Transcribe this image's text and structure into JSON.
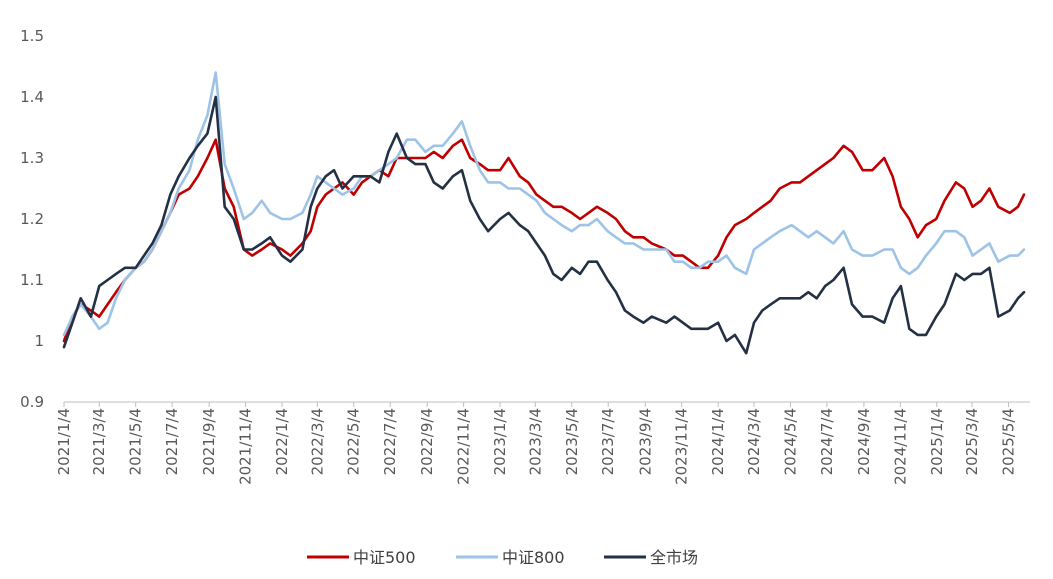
{
  "chart_data": {
    "type": "line",
    "title": "",
    "xlabel": "",
    "ylabel": "",
    "ylim": [
      0.9,
      1.5
    ],
    "yticks": [
      "0.9",
      "1",
      "1.1",
      "1.2",
      "1.3",
      "1.4",
      "1.5"
    ],
    "xticks": [
      "2021/1/4",
      "2021/3/4",
      "2021/5/4",
      "2021/7/4",
      "2021/9/4",
      "2021/11/4",
      "2022/1/4",
      "2022/3/4",
      "2022/5/4",
      "2022/7/4",
      "2022/9/4",
      "2022/11/4",
      "2023/1/4",
      "2023/3/4",
      "2023/5/4",
      "2023/7/4",
      "2023/9/4",
      "2023/11/4",
      "2024/1/4",
      "2024/3/4",
      "2024/5/4",
      "2024/7/4",
      "2024/9/4",
      "2024/11/4",
      "2025/1/4",
      "2025/3/4",
      "2025/5/4"
    ],
    "grid": false,
    "legend_position": "bottom",
    "x": [
      "2021/1/4",
      "2021/1/18",
      "2021/2/1",
      "2021/2/18",
      "2021/3/4",
      "2021/3/18",
      "2021/4/1",
      "2021/4/16",
      "2021/5/4",
      "2021/5/18",
      "2021/6/1",
      "2021/6/16",
      "2021/7/1",
      "2021/7/15",
      "2021/8/2",
      "2021/8/16",
      "2021/9/1",
      "2021/9/15",
      "2021/9/30",
      "2021/10/15",
      "2021/11/1",
      "2021/11/15",
      "2021/12/1",
      "2021/12/15",
      "2022/1/4",
      "2022/1/18",
      "2022/2/7",
      "2022/2/21",
      "2022/3/4",
      "2022/3/18",
      "2022/4/1",
      "2022/4/15",
      "2022/5/4",
      "2022/5/18",
      "2022/6/1",
      "2022/6/16",
      "2022/7/1",
      "2022/7/15",
      "2022/8/1",
      "2022/8/15",
      "2022/9/1",
      "2022/9/15",
      "2022/9/30",
      "2022/10/17",
      "2022/11/1",
      "2022/11/15",
      "2022/12/1",
      "2022/12/15",
      "2023/1/4",
      "2023/1/18",
      "2023/2/6",
      "2023/2/20",
      "2023/3/6",
      "2023/3/20",
      "2023/4/3",
      "2023/4/17",
      "2023/5/4",
      "2023/5/18",
      "2023/6/1",
      "2023/6/15",
      "2023/7/3",
      "2023/7/17",
      "2023/8/1",
      "2023/8/15",
      "2023/9/1",
      "2023/9/15",
      "2023/10/9",
      "2023/10/23",
      "2023/11/6",
      "2023/11/20",
      "2023/12/4",
      "2023/12/18",
      "2024/1/4",
      "2024/1/18",
      "2024/2/1",
      "2024/2/20",
      "2024/3/4",
      "2024/3/18",
      "2024/4/1",
      "2024/4/16",
      "2024/5/6",
      "2024/5/20",
      "2024/6/3",
      "2024/6/17",
      "2024/7/1",
      "2024/7/15",
      "2024/8/1",
      "2024/8/15",
      "2024/9/2",
      "2024/9/18",
      "2024/10/8",
      "2024/10/22",
      "2024/11/5",
      "2024/11/19",
      "2024/12/3",
      "2024/12/17",
      "2025/1/3",
      "2025/1/17",
      "2025/2/5",
      "2025/2/19",
      "2025/3/5",
      "2025/3/19",
      "2025/4/2",
      "2025/4/17",
      "2025/5/6",
      "2025/5/20",
      "2025/5/30"
    ],
    "series": [
      {
        "name": "中证500",
        "color": "#c00000",
        "values": [
          1.0,
          1.04,
          1.06,
          1.05,
          1.04,
          1.06,
          1.08,
          1.1,
          1.12,
          1.13,
          1.15,
          1.18,
          1.21,
          1.24,
          1.25,
          1.27,
          1.3,
          1.33,
          1.25,
          1.22,
          1.15,
          1.14,
          1.15,
          1.16,
          1.15,
          1.14,
          1.16,
          1.18,
          1.22,
          1.24,
          1.25,
          1.26,
          1.24,
          1.26,
          1.27,
          1.28,
          1.27,
          1.3,
          1.3,
          1.3,
          1.3,
          1.31,
          1.3,
          1.32,
          1.33,
          1.3,
          1.29,
          1.28,
          1.28,
          1.3,
          1.27,
          1.26,
          1.24,
          1.23,
          1.22,
          1.22,
          1.21,
          1.2,
          1.21,
          1.22,
          1.21,
          1.2,
          1.18,
          1.17,
          1.17,
          1.16,
          1.15,
          1.14,
          1.14,
          1.13,
          1.12,
          1.12,
          1.14,
          1.17,
          1.19,
          1.2,
          1.21,
          1.22,
          1.23,
          1.25,
          1.26,
          1.26,
          1.27,
          1.28,
          1.29,
          1.3,
          1.32,
          1.31,
          1.28,
          1.28,
          1.3,
          1.27,
          1.22,
          1.2,
          1.17,
          1.19,
          1.2,
          1.23,
          1.26,
          1.25,
          1.22,
          1.23,
          1.25,
          1.22,
          1.21,
          1.22,
          1.24
        ]
      },
      {
        "name": "中证800",
        "color": "#9dc3e6",
        "values": [
          1.01,
          1.04,
          1.06,
          1.04,
          1.02,
          1.03,
          1.07,
          1.1,
          1.12,
          1.13,
          1.15,
          1.18,
          1.21,
          1.25,
          1.28,
          1.33,
          1.37,
          1.44,
          1.29,
          1.25,
          1.2,
          1.21,
          1.23,
          1.21,
          1.2,
          1.2,
          1.21,
          1.24,
          1.27,
          1.26,
          1.25,
          1.24,
          1.25,
          1.27,
          1.27,
          1.28,
          1.29,
          1.3,
          1.33,
          1.33,
          1.31,
          1.32,
          1.32,
          1.34,
          1.36,
          1.32,
          1.28,
          1.26,
          1.26,
          1.25,
          1.25,
          1.24,
          1.23,
          1.21,
          1.2,
          1.19,
          1.18,
          1.19,
          1.19,
          1.2,
          1.18,
          1.17,
          1.16,
          1.16,
          1.15,
          1.15,
          1.15,
          1.13,
          1.13,
          1.12,
          1.12,
          1.13,
          1.13,
          1.14,
          1.12,
          1.11,
          1.15,
          1.16,
          1.17,
          1.18,
          1.19,
          1.18,
          1.17,
          1.18,
          1.17,
          1.16,
          1.18,
          1.15,
          1.14,
          1.14,
          1.15,
          1.15,
          1.12,
          1.11,
          1.12,
          1.14,
          1.16,
          1.18,
          1.18,
          1.17,
          1.14,
          1.15,
          1.16,
          1.13,
          1.14,
          1.14,
          1.15
        ]
      },
      {
        "name": "全市场",
        "color": "#243044",
        "values": [
          0.99,
          1.03,
          1.07,
          1.04,
          1.09,
          1.1,
          1.11,
          1.12,
          1.12,
          1.14,
          1.16,
          1.19,
          1.24,
          1.27,
          1.3,
          1.32,
          1.34,
          1.4,
          1.22,
          1.2,
          1.15,
          1.15,
          1.16,
          1.17,
          1.14,
          1.13,
          1.15,
          1.22,
          1.25,
          1.27,
          1.28,
          1.25,
          1.27,
          1.27,
          1.27,
          1.26,
          1.31,
          1.34,
          1.3,
          1.29,
          1.29,
          1.26,
          1.25,
          1.27,
          1.28,
          1.23,
          1.2,
          1.18,
          1.2,
          1.21,
          1.19,
          1.18,
          1.16,
          1.14,
          1.11,
          1.1,
          1.12,
          1.11,
          1.13,
          1.13,
          1.1,
          1.08,
          1.05,
          1.04,
          1.03,
          1.04,
          1.03,
          1.04,
          1.03,
          1.02,
          1.02,
          1.02,
          1.03,
          1.0,
          1.01,
          0.98,
          1.03,
          1.05,
          1.06,
          1.07,
          1.07,
          1.07,
          1.08,
          1.07,
          1.09,
          1.1,
          1.12,
          1.06,
          1.04,
          1.04,
          1.03,
          1.07,
          1.09,
          1.02,
          1.01,
          1.01,
          1.04,
          1.06,
          1.11,
          1.1,
          1.11,
          1.11,
          1.12,
          1.04,
          1.05,
          1.07,
          1.08
        ]
      }
    ]
  }
}
